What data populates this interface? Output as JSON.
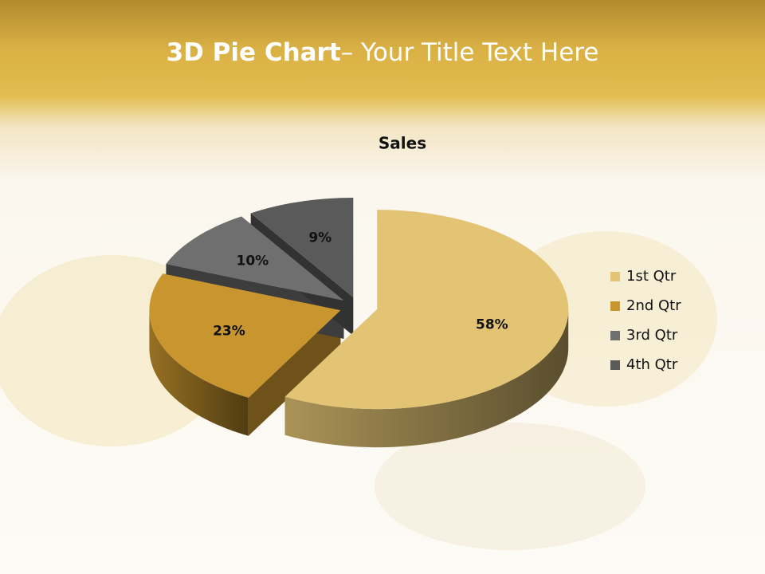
{
  "slide": {
    "title_strong": "3D Pie Chart",
    "title_rest": "– Your Title Text Here"
  },
  "chart_data": {
    "type": "pie",
    "title": "Sales",
    "categories": [
      "1st Qtr",
      "2nd Qtr",
      "3rd Qtr",
      "4th Qtr"
    ],
    "values": [
      58,
      23,
      10,
      9
    ],
    "value_labels": [
      "58%",
      "23%",
      "10%",
      "9%"
    ],
    "colors": [
      "#e2c474",
      "#c8952e",
      "#6f6f6f",
      "#5a5a5a"
    ],
    "legend": "right"
  }
}
